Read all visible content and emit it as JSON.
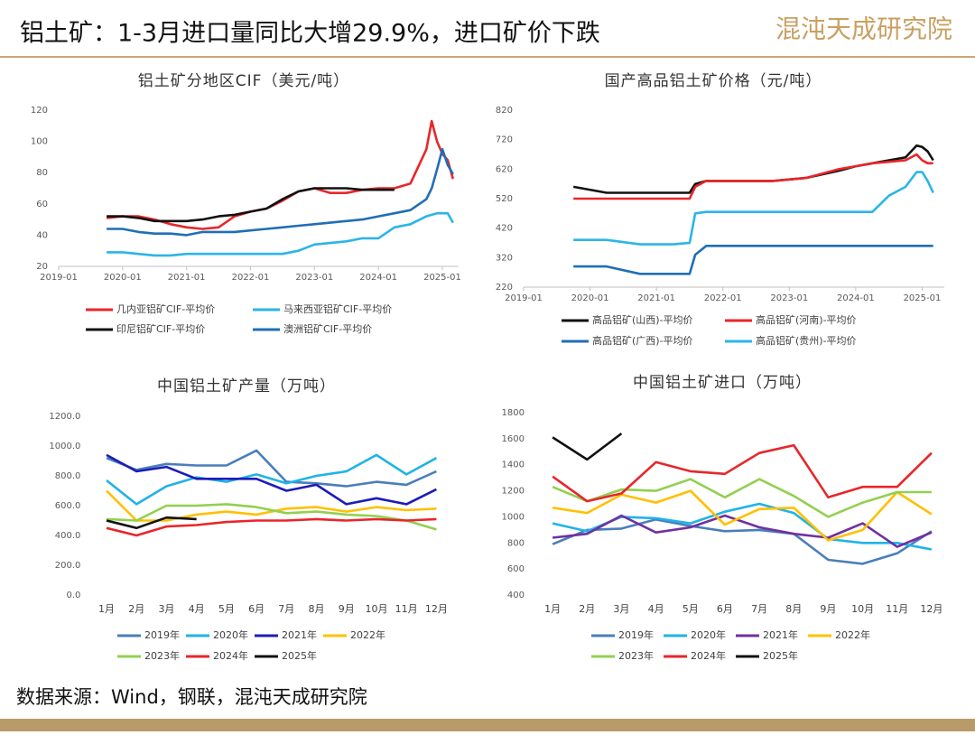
{
  "header": {
    "title": "铝土矿：1-3月进口量同比大增29.9%，进口矿价下跌",
    "logo": "混沌天成研究院"
  },
  "chart_data": [
    {
      "type": "line",
      "title": "铝土矿分地区CIF（美元/吨）",
      "x": [
        "2019-10",
        "2020-01",
        "2020-04",
        "2020-07",
        "2020-10",
        "2021-01",
        "2021-04",
        "2021-07",
        "2021-10",
        "2022-01",
        "2022-04",
        "2022-07",
        "2022-10",
        "2023-01",
        "2023-04",
        "2023-07",
        "2023-10",
        "2024-01",
        "2024-04",
        "2024-07",
        "2024-10",
        "2024-11",
        "2024-12",
        "2025-01",
        "2025-02",
        "2025-03"
      ],
      "xlim": [
        "2019-01",
        "2025-04"
      ],
      "xticks": [
        "2019-01",
        "2020-01",
        "2021-01",
        "2022-01",
        "2023-01",
        "2024-01",
        "2025-01"
      ],
      "ylim": [
        20,
        120
      ],
      "yticks": [
        20,
        40,
        60,
        80,
        100,
        120
      ],
      "grid": false,
      "series": [
        {
          "name": "几内亚铝矿CIF-平均价",
          "color": "#e8262a",
          "values": [
            51,
            52,
            52,
            50,
            47,
            45,
            44,
            45,
            52,
            55,
            57,
            62,
            68,
            70,
            67,
            67,
            69,
            70,
            70,
            73,
            95,
            113,
            100,
            92,
            88,
            76
          ]
        },
        {
          "name": "马来西亚铝矿CIF-平均价",
          "color": "#2bb5e8",
          "values": [
            29,
            29,
            28,
            27,
            27,
            28,
            28,
            28,
            28,
            28,
            28,
            28,
            30,
            34,
            35,
            36,
            38,
            38,
            45,
            47,
            52,
            53,
            54,
            54,
            54,
            48
          ]
        },
        {
          "name": "印尼铝矿CIF-平均价",
          "color": "#111111",
          "values": [
            52,
            52,
            51,
            49,
            49,
            49,
            50,
            52,
            53,
            55,
            57,
            63,
            68,
            70,
            70,
            70,
            69,
            69,
            69,
            null,
            null,
            null,
            null,
            null,
            null,
            null
          ]
        },
        {
          "name": "澳洲铝矿CIF-平均价",
          "color": "#1f6fb5",
          "values": [
            44,
            44,
            42,
            41,
            41,
            40,
            42,
            42,
            42,
            43,
            44,
            45,
            46,
            47,
            48,
            49,
            50,
            52,
            54,
            56,
            63,
            70,
            82,
            95,
            85,
            79
          ]
        }
      ]
    },
    {
      "type": "line",
      "title": "国产高品铝土矿价格（元/吨）",
      "x": [
        "2019-10",
        "2020-04",
        "2020-10",
        "2021-04",
        "2021-07",
        "2021-08",
        "2021-10",
        "2022-04",
        "2022-10",
        "2023-04",
        "2023-10",
        "2024-01",
        "2024-04",
        "2024-07",
        "2024-10",
        "2024-12",
        "2025-01",
        "2025-02",
        "2025-03"
      ],
      "xlim": [
        "2019-01",
        "2025-05"
      ],
      "xticks": [
        "2019-01",
        "2020-01",
        "2021-01",
        "2022-01",
        "2023-01",
        "2024-01",
        "2025-01"
      ],
      "ylim": [
        220,
        820
      ],
      "yticks": [
        220,
        320,
        420,
        520,
        620,
        720,
        820
      ],
      "grid": false,
      "series": [
        {
          "name": "高品铝矿(山西)-平均价",
          "color": "#111111",
          "values": [
            560,
            540,
            540,
            540,
            540,
            570,
            580,
            580,
            580,
            590,
            615,
            630,
            640,
            650,
            660,
            700,
            695,
            680,
            650
          ]
        },
        {
          "name": "高品铝矿(河南)-平均价",
          "color": "#e8262a",
          "values": [
            520,
            520,
            520,
            520,
            520,
            560,
            580,
            580,
            580,
            590,
            620,
            630,
            640,
            645,
            650,
            670,
            650,
            640,
            640
          ]
        },
        {
          "name": "高品铝矿(广西)-平均价",
          "color": "#1f6fb5",
          "values": [
            290,
            290,
            265,
            265,
            265,
            330,
            360,
            360,
            360,
            360,
            360,
            360,
            360,
            360,
            360,
            360,
            360,
            360,
            360
          ]
        },
        {
          "name": "高品铝矿(贵州)-平均价",
          "color": "#2bb5e8",
          "values": [
            380,
            380,
            365,
            365,
            370,
            470,
            475,
            475,
            475,
            475,
            475,
            475,
            475,
            530,
            560,
            610,
            610,
            580,
            540
          ]
        }
      ]
    },
    {
      "type": "line",
      "title": "中国铝土矿产量（万吨）",
      "categories": [
        "1月",
        "2月",
        "3月",
        "4月",
        "5月",
        "6月",
        "7月",
        "8月",
        "9月",
        "10月",
        "11月",
        "12月"
      ],
      "ylim": [
        0,
        1200
      ],
      "yticks": [
        {
          "value": 0,
          "label": "0.0"
        },
        {
          "value": 200,
          "label": "200.0"
        },
        {
          "value": 400,
          "label": "400.0"
        },
        {
          "value": 600,
          "label": "600.0"
        },
        {
          "value": 800,
          "label": "800.0"
        },
        {
          "value": 1000,
          "label": "1000.0"
        },
        {
          "value": 1200,
          "label": "1200.0"
        }
      ],
      "grid": false,
      "series": [
        {
          "name": "2019年",
          "color": "#4a7ebb",
          "values": [
            920,
            840,
            880,
            870,
            870,
            970,
            760,
            750,
            730,
            760,
            740,
            830
          ]
        },
        {
          "name": "2020年",
          "color": "#1fb3e6",
          "values": [
            770,
            610,
            730,
            790,
            760,
            810,
            750,
            800,
            830,
            940,
            810,
            920
          ]
        },
        {
          "name": "2021年",
          "color": "#1c1cb8",
          "values": [
            940,
            830,
            860,
            780,
            780,
            780,
            700,
            740,
            610,
            650,
            610,
            710
          ]
        },
        {
          "name": "2022年",
          "color": "#ffc000",
          "values": [
            700,
            500,
            500,
            540,
            560,
            540,
            580,
            590,
            560,
            590,
            570,
            580
          ]
        },
        {
          "name": "2023年",
          "color": "#92d050",
          "values": [
            510,
            500,
            600,
            600,
            610,
            590,
            550,
            560,
            540,
            530,
            500,
            440
          ]
        },
        {
          "name": "2024年",
          "color": "#e8262a",
          "values": [
            450,
            400,
            460,
            470,
            490,
            500,
            500,
            510,
            500,
            510,
            500,
            510
          ]
        },
        {
          "name": "2025年",
          "color": "#111111",
          "values": [
            500,
            450,
            520,
            510,
            null,
            null,
            null,
            null,
            null,
            null,
            null,
            null
          ]
        }
      ]
    },
    {
      "type": "line",
      "title": "中国铝土矿进口（万吨）",
      "categories": [
        "1月",
        "2月",
        "3月",
        "4月",
        "5月",
        "6月",
        "7月",
        "8月",
        "9月",
        "10月",
        "11月",
        "12月"
      ],
      "ylim": [
        400,
        1800
      ],
      "yticks": [
        400,
        600,
        800,
        1000,
        1200,
        1400,
        1600,
        1800
      ],
      "grid": false,
      "series": [
        {
          "name": "2019年",
          "color": "#4a7ebb",
          "values": [
            790,
            900,
            910,
            980,
            930,
            890,
            900,
            870,
            670,
            640,
            720,
            890
          ]
        },
        {
          "name": "2020年",
          "color": "#1fb3e6",
          "values": [
            950,
            890,
            1000,
            990,
            950,
            1040,
            1100,
            1030,
            830,
            800,
            800,
            750
          ]
        },
        {
          "name": "2021年",
          "color": "#7030a0",
          "values": [
            840,
            870,
            1010,
            880,
            920,
            1010,
            920,
            870,
            840,
            950,
            770,
            880
          ]
        },
        {
          "name": "2022年",
          "color": "#ffc000",
          "values": [
            1070,
            1030,
            1170,
            1110,
            1200,
            940,
            1060,
            1070,
            820,
            900,
            1190,
            1020
          ]
        },
        {
          "name": "2023年",
          "color": "#92d050",
          "values": [
            1230,
            1120,
            1210,
            1200,
            1290,
            1150,
            1290,
            1160,
            1000,
            1110,
            1190,
            1190
          ]
        },
        {
          "name": "2024年",
          "color": "#e8262a",
          "values": [
            1310,
            1120,
            1180,
            1420,
            1350,
            1330,
            1490,
            1550,
            1150,
            1230,
            1230,
            1490
          ]
        },
        {
          "name": "2025年",
          "color": "#111111",
          "values": [
            1610,
            1440,
            1640,
            null,
            null,
            null,
            null,
            null,
            null,
            null,
            null,
            null
          ]
        }
      ]
    }
  ],
  "footer": {
    "source": "数据来源：Wind，钢联，混沌天成研究院"
  }
}
